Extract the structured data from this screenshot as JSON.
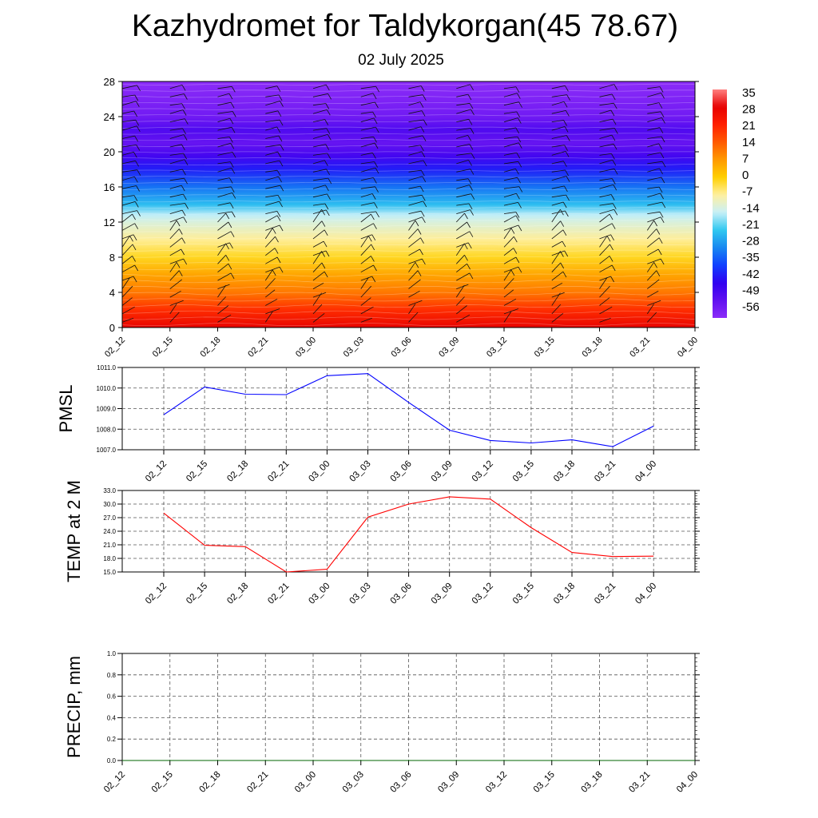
{
  "header": {
    "title": "Kazhydromet for Taldykorgan(45 78.67)",
    "subtitle": "02 July 2025"
  },
  "chart_data": [
    {
      "type": "heatmap",
      "name": "vertical-cross-section",
      "x_ticks": [
        "02_12",
        "02_15",
        "02_18",
        "02_21",
        "03_00",
        "03_03",
        "03_06",
        "03_09",
        "03_12",
        "03_15",
        "03_18",
        "03_21",
        "04_00"
      ],
      "y_ticks": [
        "0",
        "4",
        "8",
        "12",
        "16",
        "20",
        "24",
        "28"
      ],
      "ylim": [
        0,
        28
      ],
      "colorbar_labels": [
        "35",
        "28",
        "21",
        "14",
        "7",
        "0",
        "-7",
        "-14",
        "-21",
        "-28",
        "-35",
        "-42",
        "-49",
        "-56"
      ],
      "colormap": [
        "#ff8080",
        "#e60000",
        "#ff2000",
        "#ff5a00",
        "#ff9a00",
        "#ffd000",
        "#fff0a0",
        "#c8f0f8",
        "#30c8f0",
        "#1888f0",
        "#1040ff",
        "#3000f0",
        "#6010f0",
        "#8c2cf8"
      ],
      "temperature_profile": [
        {
          "z": 0,
          "t": 33
        },
        {
          "z": 2,
          "t": 24
        },
        {
          "z": 4,
          "t": 14
        },
        {
          "z": 6,
          "t": 8
        },
        {
          "z": 8,
          "t": 0
        },
        {
          "z": 10,
          "t": -6
        },
        {
          "z": 12,
          "t": -12
        },
        {
          "z": 12.8,
          "t": -15
        },
        {
          "z": 14,
          "t": -24
        },
        {
          "z": 16,
          "t": -33
        },
        {
          "z": 18,
          "t": -43
        },
        {
          "z": 19.5,
          "t": -50
        },
        {
          "z": 21,
          "t": -56
        },
        {
          "z": 22.5,
          "t": -52
        },
        {
          "z": 24,
          "t": -58
        },
        {
          "z": 28,
          "t": -63
        }
      ]
    },
    {
      "type": "line",
      "name": "pmsl",
      "ylabel": "PMSL",
      "x": [
        "02_12",
        "02_15",
        "02_18",
        "02_21",
        "03_00",
        "03_03",
        "03_06",
        "03_09",
        "03_12",
        "03_15",
        "03_18",
        "03_21",
        "04_00"
      ],
      "values": [
        1008.7,
        1010.05,
        1009.7,
        1009.68,
        1010.6,
        1010.7,
        1009.3,
        1007.95,
        1007.45,
        1007.33,
        1007.48,
        1007.15,
        1008.15
      ],
      "ylim": [
        1007.0,
        1011.0
      ],
      "y_ticks": [
        "1007.0",
        "1008.0",
        "1009.0",
        "1010.0",
        "1011.0"
      ],
      "color": "#0000ff",
      "grid": true
    },
    {
      "type": "line",
      "name": "temp-2m",
      "ylabel": "TEMP at 2 M",
      "x": [
        "02_12",
        "02_15",
        "02_18",
        "02_21",
        "03_00",
        "03_03",
        "03_06",
        "03_09",
        "03_12",
        "03_15",
        "03_18",
        "03_21",
        "04_00"
      ],
      "values": [
        28.0,
        20.9,
        20.6,
        15.0,
        15.6,
        27.1,
        30.0,
        31.6,
        31.1,
        24.8,
        19.3,
        18.4,
        18.5
      ],
      "ylim": [
        15.0,
        33.0
      ],
      "y_ticks": [
        "15.0",
        "18.0",
        "21.0",
        "24.0",
        "27.0",
        "30.0",
        "33.0"
      ],
      "color": "#ff0000",
      "grid": true
    },
    {
      "type": "line",
      "name": "precip",
      "ylabel": "PRECIP, mm",
      "x_ticks": [
        "02_12",
        "02_15",
        "02_18",
        "02_21",
        "03_00",
        "03_03",
        "03_06",
        "03_09",
        "03_12",
        "03_15",
        "03_18",
        "03_21",
        "04_00"
      ],
      "values": [
        0,
        0,
        0,
        0,
        0,
        0,
        0,
        0,
        0,
        0,
        0,
        0,
        0
      ],
      "ylim": [
        0.0,
        1.0
      ],
      "y_ticks": [
        "0.0",
        "0.2",
        "0.4",
        "0.6",
        "0.8",
        "1.0"
      ],
      "color": "#006400",
      "grid": true
    }
  ]
}
